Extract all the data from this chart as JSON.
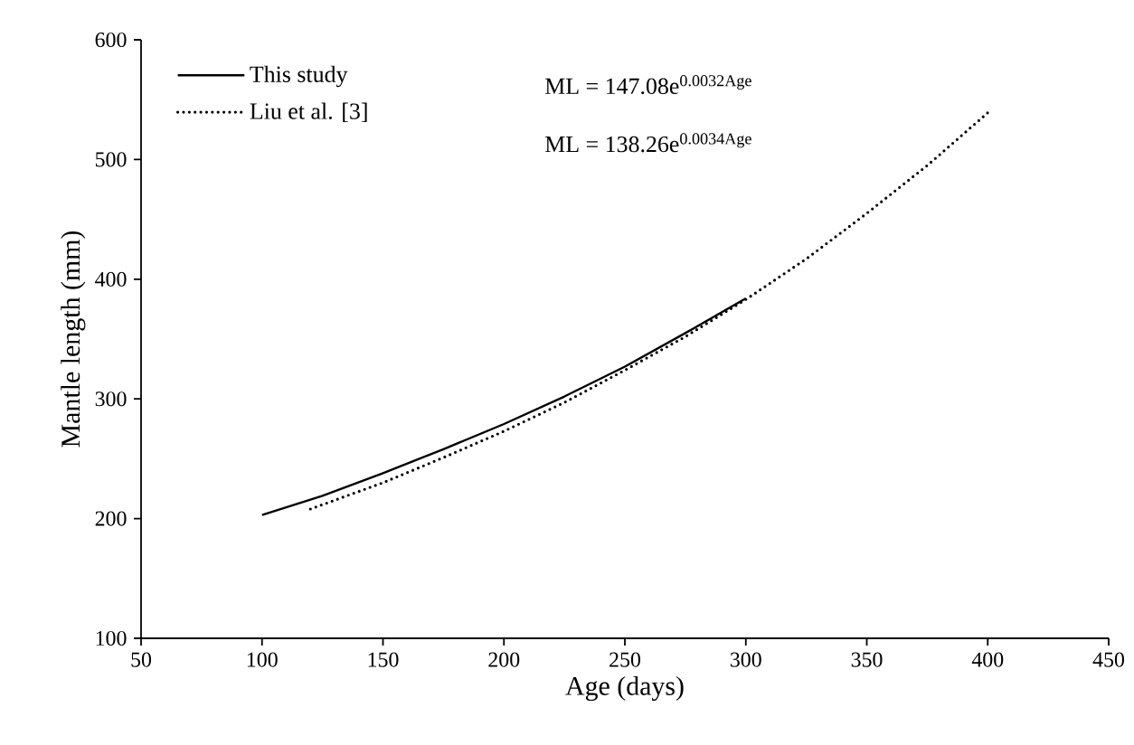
{
  "chart_data": {
    "type": "line",
    "xlabel": "Age (days)",
    "ylabel": "Mantle length (mm)",
    "xlim": [
      50,
      450
    ],
    "xticks": [
      50,
      100,
      150,
      200,
      250,
      300,
      350,
      400,
      450
    ],
    "ylim": [
      100,
      600
    ],
    "yticks": [
      100,
      200,
      300,
      400,
      500,
      600
    ],
    "grid": false,
    "legend": "top left",
    "marker": "none",
    "series": [
      {
        "name": "This study",
        "color": "#000000",
        "line_style": "solid",
        "x": [
          100,
          125,
          150,
          175,
          200,
          225,
          250,
          275,
          300
        ],
        "values": [
          203,
          219,
          238,
          258,
          279,
          302,
          327,
          355,
          384
        ]
      },
      {
        "name": "Liu et al. [3]",
        "color": "#000000",
        "line_style": "dotted",
        "x": [
          120,
          150,
          175,
          200,
          225,
          250,
          275,
          300,
          325,
          350,
          375,
          400
        ],
        "values": [
          208,
          230,
          251,
          273,
          297,
          324,
          352,
          383,
          417,
          455,
          495,
          539
        ]
      }
    ],
    "annotations": [
      "ML = 147.08e$^{0.0032Age}$",
      "ML = 138.26e$^{0.0034Age}$"
    ]
  }
}
